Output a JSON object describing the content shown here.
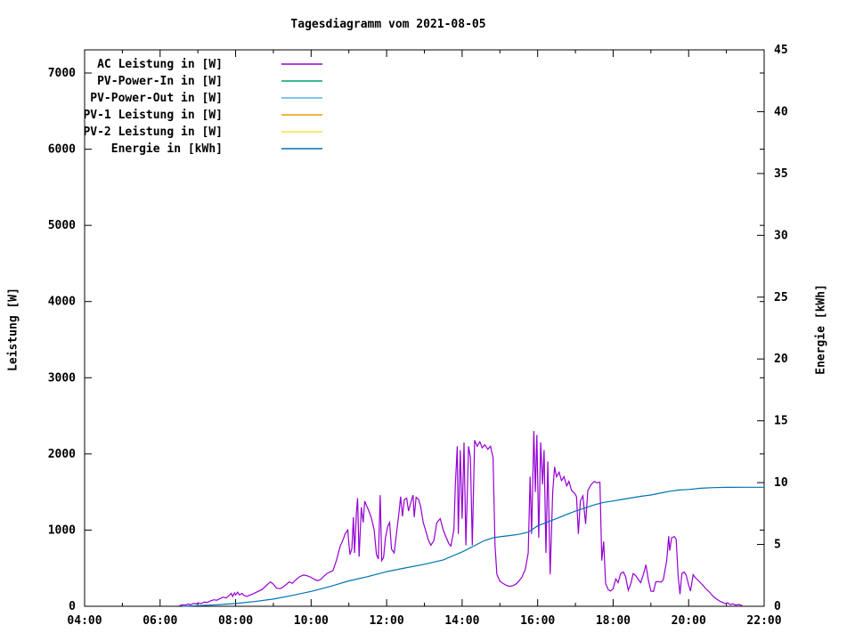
{
  "chart_data": {
    "type": "line",
    "title": "Tagesdiagramm vom 2021-08-05",
    "ylabel_left": "Leistung [W]",
    "ylabel_right": "Energie [kWh]",
    "x_axis": {
      "unit": "time",
      "range_hours": [
        4,
        22
      ],
      "major_tick_labels": [
        "04:00",
        "06:00",
        "08:00",
        "10:00",
        "12:00",
        "14:00",
        "16:00",
        "18:00",
        "20:00",
        "22:00"
      ],
      "minor_tick_every_hours": 1
    },
    "y_axis_left": {
      "label": "Leistung [W]",
      "range": [
        0,
        7300
      ],
      "tick_labels": [
        "0",
        "1000",
        "2000",
        "3000",
        "4000",
        "5000",
        "6000",
        "7000"
      ],
      "tick_step": 1000
    },
    "y_axis_right": {
      "label": "Energie [kWh]",
      "range": [
        0,
        45
      ],
      "tick_labels": [
        "0",
        "5",
        "10",
        "15",
        "20",
        "25",
        "30",
        "35",
        "40",
        "45"
      ],
      "tick_step": 5
    },
    "grid": "off",
    "legend_position": "top-left-inside",
    "series": [
      {
        "name": "AC Leistung in [W]",
        "axis": "left",
        "color": "#9400d3",
        "points": [
          [
            6.5,
            5
          ],
          [
            6.58,
            20
          ],
          [
            6.67,
            15
          ],
          [
            6.75,
            30
          ],
          [
            6.8,
            20
          ],
          [
            6.9,
            40
          ],
          [
            6.95,
            30
          ],
          [
            7.0,
            45
          ],
          [
            7.08,
            35
          ],
          [
            7.17,
            55
          ],
          [
            7.25,
            50
          ],
          [
            7.33,
            70
          ],
          [
            7.42,
            85
          ],
          [
            7.5,
            80
          ],
          [
            7.58,
            100
          ],
          [
            7.67,
            120
          ],
          [
            7.75,
            110
          ],
          [
            7.83,
            140
          ],
          [
            7.88,
            170
          ],
          [
            7.92,
            130
          ],
          [
            7.97,
            175
          ],
          [
            8.0,
            150
          ],
          [
            8.05,
            185
          ],
          [
            8.1,
            150
          ],
          [
            8.17,
            170
          ],
          [
            8.22,
            140
          ],
          [
            8.3,
            130
          ],
          [
            8.37,
            145
          ],
          [
            8.45,
            160
          ],
          [
            8.55,
            185
          ],
          [
            8.7,
            220
          ],
          [
            8.85,
            290
          ],
          [
            8.92,
            320
          ],
          [
            9.0,
            290
          ],
          [
            9.08,
            240
          ],
          [
            9.17,
            230
          ],
          [
            9.25,
            250
          ],
          [
            9.33,
            280
          ],
          [
            9.42,
            320
          ],
          [
            9.5,
            300
          ],
          [
            9.58,
            340
          ],
          [
            9.7,
            390
          ],
          [
            9.8,
            410
          ],
          [
            9.9,
            400
          ],
          [
            10.0,
            380
          ],
          [
            10.08,
            355
          ],
          [
            10.17,
            335
          ],
          [
            10.25,
            350
          ],
          [
            10.33,
            390
          ],
          [
            10.42,
            430
          ],
          [
            10.5,
            450
          ],
          [
            10.58,
            470
          ],
          [
            10.67,
            600
          ],
          [
            10.77,
            790
          ],
          [
            10.85,
            880
          ],
          [
            10.9,
            950
          ],
          [
            10.97,
            1000
          ],
          [
            11.0,
            820
          ],
          [
            11.03,
            680
          ],
          [
            11.08,
            760
          ],
          [
            11.12,
            1170
          ],
          [
            11.15,
            700
          ],
          [
            11.2,
            1230
          ],
          [
            11.23,
            1420
          ],
          [
            11.27,
            650
          ],
          [
            11.33,
            1300
          ],
          [
            11.38,
            1100
          ],
          [
            11.42,
            1380
          ],
          [
            11.47,
            1320
          ],
          [
            11.53,
            1250
          ],
          [
            11.6,
            1150
          ],
          [
            11.67,
            1000
          ],
          [
            11.73,
            680
          ],
          [
            11.78,
            620
          ],
          [
            11.83,
            1460
          ],
          [
            11.87,
            600
          ],
          [
            11.92,
            640
          ],
          [
            11.97,
            900
          ],
          [
            12.03,
            1050
          ],
          [
            12.08,
            1100
          ],
          [
            12.13,
            750
          ],
          [
            12.2,
            700
          ],
          [
            12.27,
            1000
          ],
          [
            12.33,
            1240
          ],
          [
            12.37,
            1440
          ],
          [
            12.42,
            1180
          ],
          [
            12.47,
            1400
          ],
          [
            12.53,
            1420
          ],
          [
            12.58,
            1250
          ],
          [
            12.65,
            1380
          ],
          [
            12.7,
            1460
          ],
          [
            12.73,
            1170
          ],
          [
            12.78,
            1430
          ],
          [
            12.85,
            1400
          ],
          [
            12.9,
            1310
          ],
          [
            12.97,
            1100
          ],
          [
            13.03,
            1000
          ],
          [
            13.1,
            880
          ],
          [
            13.17,
            800
          ],
          [
            13.25,
            860
          ],
          [
            13.33,
            1100
          ],
          [
            13.42,
            1150
          ],
          [
            13.5,
            1000
          ],
          [
            13.58,
            900
          ],
          [
            13.65,
            820
          ],
          [
            13.7,
            790
          ],
          [
            13.78,
            1000
          ],
          [
            13.82,
            1600
          ],
          [
            13.87,
            2100
          ],
          [
            13.9,
            950
          ],
          [
            13.95,
            2050
          ],
          [
            14.0,
            1150
          ],
          [
            14.05,
            2150
          ],
          [
            14.1,
            800
          ],
          [
            14.17,
            2100
          ],
          [
            14.22,
            1950
          ],
          [
            14.27,
            800
          ],
          [
            14.33,
            2180
          ],
          [
            14.4,
            2100
          ],
          [
            14.47,
            2160
          ],
          [
            14.53,
            2080
          ],
          [
            14.6,
            2120
          ],
          [
            14.68,
            2060
          ],
          [
            14.75,
            2100
          ],
          [
            14.82,
            1950
          ],
          [
            14.87,
            800
          ],
          [
            14.92,
            420
          ],
          [
            15.0,
            330
          ],
          [
            15.08,
            300
          ],
          [
            15.17,
            275
          ],
          [
            15.25,
            262
          ],
          [
            15.33,
            268
          ],
          [
            15.42,
            290
          ],
          [
            15.5,
            330
          ],
          [
            15.58,
            380
          ],
          [
            15.67,
            480
          ],
          [
            15.75,
            700
          ],
          [
            15.8,
            1700
          ],
          [
            15.84,
            950
          ],
          [
            15.9,
            2300
          ],
          [
            15.94,
            1500
          ],
          [
            15.98,
            2250
          ],
          [
            16.03,
            900
          ],
          [
            16.08,
            2150
          ],
          [
            16.13,
            1600
          ],
          [
            16.17,
            2050
          ],
          [
            16.22,
            700
          ],
          [
            16.27,
            1900
          ],
          [
            16.33,
            420
          ],
          [
            16.4,
            1500
          ],
          [
            16.45,
            1830
          ],
          [
            16.5,
            1700
          ],
          [
            16.57,
            1760
          ],
          [
            16.63,
            1650
          ],
          [
            16.7,
            1700
          ],
          [
            16.77,
            1580
          ],
          [
            16.83,
            1640
          ],
          [
            16.9,
            1520
          ],
          [
            16.97,
            1490
          ],
          [
            17.03,
            1440
          ],
          [
            17.08,
            950
          ],
          [
            17.13,
            1380
          ],
          [
            17.2,
            1450
          ],
          [
            17.27,
            1080
          ],
          [
            17.33,
            1520
          ],
          [
            17.42,
            1600
          ],
          [
            17.5,
            1640
          ],
          [
            17.58,
            1620
          ],
          [
            17.65,
            1630
          ],
          [
            17.7,
            600
          ],
          [
            17.75,
            850
          ],
          [
            17.8,
            300
          ],
          [
            17.87,
            220
          ],
          [
            17.93,
            200
          ],
          [
            18.0,
            230
          ],
          [
            18.07,
            360
          ],
          [
            18.13,
            310
          ],
          [
            18.2,
            430
          ],
          [
            18.27,
            450
          ],
          [
            18.33,
            390
          ],
          [
            18.4,
            210
          ],
          [
            18.47,
            300
          ],
          [
            18.53,
            430
          ],
          [
            18.6,
            400
          ],
          [
            18.67,
            350
          ],
          [
            18.73,
            310
          ],
          [
            18.8,
            420
          ],
          [
            18.87,
            545
          ],
          [
            18.93,
            350
          ],
          [
            19.0,
            200
          ],
          [
            19.07,
            195
          ],
          [
            19.13,
            320
          ],
          [
            19.2,
            325
          ],
          [
            19.27,
            315
          ],
          [
            19.33,
            350
          ],
          [
            19.42,
            600
          ],
          [
            19.47,
            920
          ],
          [
            19.5,
            730
          ],
          [
            19.55,
            900
          ],
          [
            19.62,
            915
          ],
          [
            19.67,
            880
          ],
          [
            19.72,
            400
          ],
          [
            19.77,
            160
          ],
          [
            19.82,
            430
          ],
          [
            19.88,
            450
          ],
          [
            19.93,
            415
          ],
          [
            20.0,
            280
          ],
          [
            20.05,
            200
          ],
          [
            20.12,
            415
          ],
          [
            20.17,
            380
          ],
          [
            20.23,
            350
          ],
          [
            20.3,
            315
          ],
          [
            20.37,
            280
          ],
          [
            20.43,
            245
          ],
          [
            20.5,
            210
          ],
          [
            20.57,
            175
          ],
          [
            20.63,
            140
          ],
          [
            20.7,
            110
          ],
          [
            20.77,
            85
          ],
          [
            20.83,
            65
          ],
          [
            20.9,
            50
          ],
          [
            20.97,
            35
          ],
          [
            21.03,
            45
          ],
          [
            21.1,
            22
          ],
          [
            21.17,
            32
          ],
          [
            21.25,
            15
          ],
          [
            21.33,
            25
          ],
          [
            21.42,
            8
          ]
        ]
      },
      {
        "name": "PV-Power-In in [W]",
        "axis": "left",
        "color": "#009e73",
        "points": []
      },
      {
        "name": "PV-Power-Out in [W]",
        "axis": "left",
        "color": "#56b4e9",
        "points": []
      },
      {
        "name": "PV-1 Leistung in [W]",
        "axis": "left",
        "color": "#e69f00",
        "points": []
      },
      {
        "name": "PV-2 Leistung in [W]",
        "axis": "left",
        "color": "#f0e442",
        "points": []
      },
      {
        "name": "Energie in [kWh]",
        "axis": "right",
        "color": "#0072b2",
        "points": [
          [
            6.6,
            0
          ],
          [
            7.0,
            0.05
          ],
          [
            7.5,
            0.12
          ],
          [
            8.0,
            0.22
          ],
          [
            8.5,
            0.38
          ],
          [
            9.0,
            0.58
          ],
          [
            9.5,
            0.88
          ],
          [
            10.0,
            1.2
          ],
          [
            10.5,
            1.6
          ],
          [
            11.0,
            2.05
          ],
          [
            11.5,
            2.4
          ],
          [
            12.0,
            2.8
          ],
          [
            12.5,
            3.1
          ],
          [
            13.0,
            3.4
          ],
          [
            13.5,
            3.75
          ],
          [
            14.0,
            4.4
          ],
          [
            14.33,
            4.9
          ],
          [
            14.58,
            5.3
          ],
          [
            14.83,
            5.55
          ],
          [
            15.0,
            5.62
          ],
          [
            15.25,
            5.72
          ],
          [
            15.5,
            5.82
          ],
          [
            15.75,
            6.0
          ],
          [
            16.0,
            6.5
          ],
          [
            16.25,
            6.8
          ],
          [
            16.5,
            7.1
          ],
          [
            16.75,
            7.4
          ],
          [
            17.0,
            7.7
          ],
          [
            17.25,
            7.95
          ],
          [
            17.5,
            8.2
          ],
          [
            17.75,
            8.4
          ],
          [
            18.0,
            8.52
          ],
          [
            18.25,
            8.65
          ],
          [
            18.5,
            8.78
          ],
          [
            18.75,
            8.9
          ],
          [
            19.0,
            9.0
          ],
          [
            19.25,
            9.15
          ],
          [
            19.5,
            9.3
          ],
          [
            19.75,
            9.4
          ],
          [
            20.0,
            9.45
          ],
          [
            20.33,
            9.55
          ],
          [
            20.67,
            9.6
          ],
          [
            21.0,
            9.62
          ],
          [
            21.5,
            9.63
          ],
          [
            22.0,
            9.63
          ]
        ]
      }
    ],
    "final_energy_kwh": 9.63,
    "ac_peak_w": 2300
  },
  "colors": {
    "background": "#ffffff",
    "axis": "#000000",
    "text": "#000000"
  }
}
